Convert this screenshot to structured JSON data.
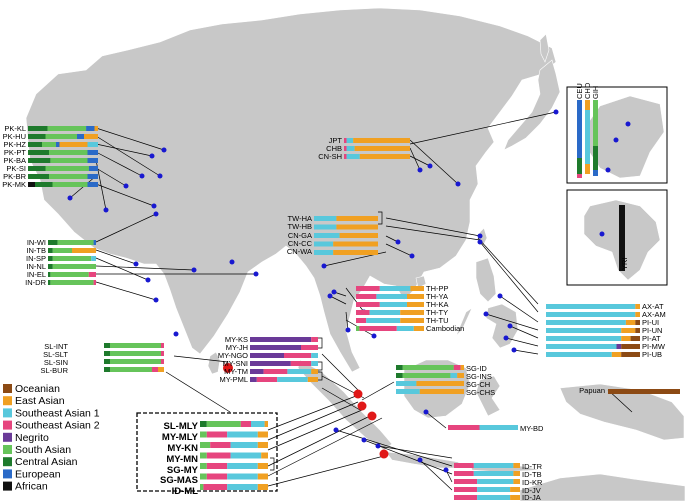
{
  "colors": {
    "Oceanian": "#8c4a14",
    "East Asian": "#f0a022",
    "Southeast Asian 1": "#58c8dc",
    "Southeast Asian 2": "#e6457e",
    "Negrito": "#6a3a98",
    "South Asian": "#66c45a",
    "Central Asian": "#1e7a2c",
    "European": "#2a6ac8",
    "African": "#111111",
    "land": "#c8c8c8",
    "sample_dot": "#1818d0",
    "study_dot": "#e01818"
  },
  "legend": {
    "items": [
      "Oceanian",
      "East Asian",
      "Southeast Asian 1",
      "Southeast Asian 2",
      "Negrito",
      "South Asian",
      "Central Asian",
      "European",
      "African"
    ]
  },
  "pakistan": {
    "labels": [
      "PK-KL",
      "PK-HU",
      "PK-HZ",
      "PK-PT",
      "PK-BA",
      "PK-SI",
      "PK-BR",
      "PK-MK"
    ]
  },
  "india": {
    "labels": [
      "IN-WI",
      "IN-TB",
      "IN-SP",
      "IN-NL",
      "IN-EL",
      "IN-DR"
    ]
  },
  "east_asia": {
    "labels": [
      "JPT",
      "CHB",
      "CN-SH"
    ]
  },
  "china": {
    "labels": [
      "TW-HA",
      "TW-HB",
      "CN-GA",
      "CN-CC",
      "CN-WA"
    ]
  },
  "thailand": {
    "labels": [
      "TH-PP",
      "TH-YA",
      "TH-KA",
      "TH-TY",
      "TH-TU",
      "Cambodian"
    ]
  },
  "philippines": {
    "labels": [
      "AX-AT",
      "AX-AM",
      "PI-UI",
      "PI-UN",
      "PI-AT",
      "PI-MW",
      "PI-UB"
    ]
  },
  "srilanka": {
    "labels": [
      "SL-INT",
      "SL-SLT",
      "SL-SIN",
      "SL-BUR"
    ]
  },
  "malaysia": {
    "labels": [
      "MY-KS",
      "MY-JH",
      "MY-NGO",
      "MY-SNI",
      "MY-TM",
      "MY-PML"
    ]
  },
  "singapore": {
    "labels": [
      "SG-ID",
      "SG-INS",
      "SG-CH",
      "SG-CHS"
    ]
  },
  "study": {
    "labels": [
      "SL-MLY",
      "MY-MLY",
      "MY-KN",
      "MY-MN",
      "SG-MY",
      "SG-MAS",
      "ID-ML"
    ]
  },
  "indonesia": {
    "labels": [
      "ID-TR",
      "ID-TB",
      "ID-KR",
      "ID-JV",
      "ID-JA"
    ]
  },
  "borneo": {
    "label": "MY-BD"
  },
  "papua": {
    "label": "Papuan"
  },
  "inset_ref": {
    "labels": [
      "CEU",
      "CHD",
      "GIH"
    ]
  },
  "inset_africa": {
    "label": "YRI"
  }
}
